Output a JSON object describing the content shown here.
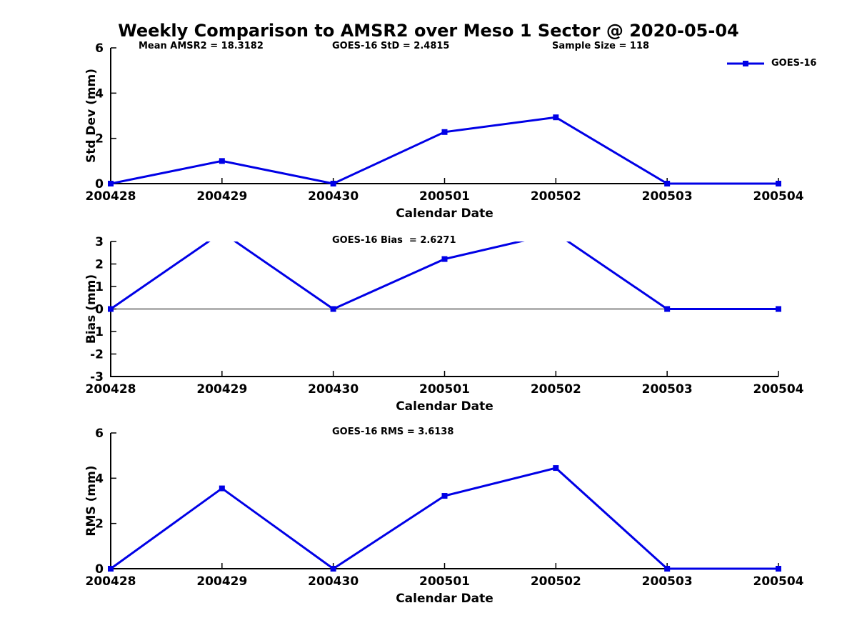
{
  "figure": {
    "title": "Weekly Comparison to AMSR2 over Meso 1 Sector @ 2020-05-04",
    "background": "#ffffff",
    "text_color": "#000000"
  },
  "chart_data": [
    {
      "type": "line",
      "name": "std-dev",
      "x_categories": [
        "200428",
        "200429",
        "200430",
        "200501",
        "200502",
        "200503",
        "200504"
      ],
      "series": [
        {
          "name": "GOES-16",
          "color": "#0000e6",
          "marker": "square",
          "values": [
            0,
            1.0,
            0,
            2.28,
            2.93,
            0,
            0
          ]
        }
      ],
      "xlabel": "Calendar Date",
      "ylabel": "Std Dev (mm)",
      "ylim": [
        0,
        6
      ],
      "yticks": [
        0,
        2,
        4,
        6
      ],
      "grid": false,
      "legend_position": "top-right",
      "annotations": [
        {
          "text": "Mean AMSR2 = 18.3182"
        },
        {
          "text": "GOES-16 StD = 2.4815"
        },
        {
          "text": "Sample Size = 118"
        }
      ]
    },
    {
      "type": "line",
      "name": "bias",
      "x_categories": [
        "200428",
        "200429",
        "200430",
        "200501",
        "200502",
        "200503",
        "200504"
      ],
      "series": [
        {
          "name": "GOES-16",
          "color": "#0000e6",
          "marker": "square",
          "values": [
            0,
            3.41,
            0,
            2.22,
            3.37,
            0,
            0
          ]
        }
      ],
      "xlabel": "Calendar Date",
      "ylabel": "Bias (mm)",
      "ylim": [
        -3,
        3
      ],
      "yticks": [
        3,
        2,
        1,
        0,
        -1,
        -2,
        -3
      ],
      "zero_line": true,
      "clip_to_axes": true,
      "grid": false,
      "annotations": [
        {
          "text": "GOES-16 Bias  = 2.6271"
        }
      ]
    },
    {
      "type": "line",
      "name": "rms",
      "x_categories": [
        "200428",
        "200429",
        "200430",
        "200501",
        "200502",
        "200503",
        "200504"
      ],
      "series": [
        {
          "name": "GOES-16",
          "color": "#0000e6",
          "marker": "square",
          "values": [
            0,
            3.55,
            0,
            3.22,
            4.45,
            0,
            0
          ]
        }
      ],
      "xlabel": "Calendar Date",
      "ylabel": "RMS (mm)",
      "ylim": [
        0,
        6
      ],
      "yticks": [
        0,
        2,
        4,
        6
      ],
      "grid": false,
      "annotations": [
        {
          "text": "GOES-16 RMS = 3.6138"
        }
      ]
    }
  ]
}
